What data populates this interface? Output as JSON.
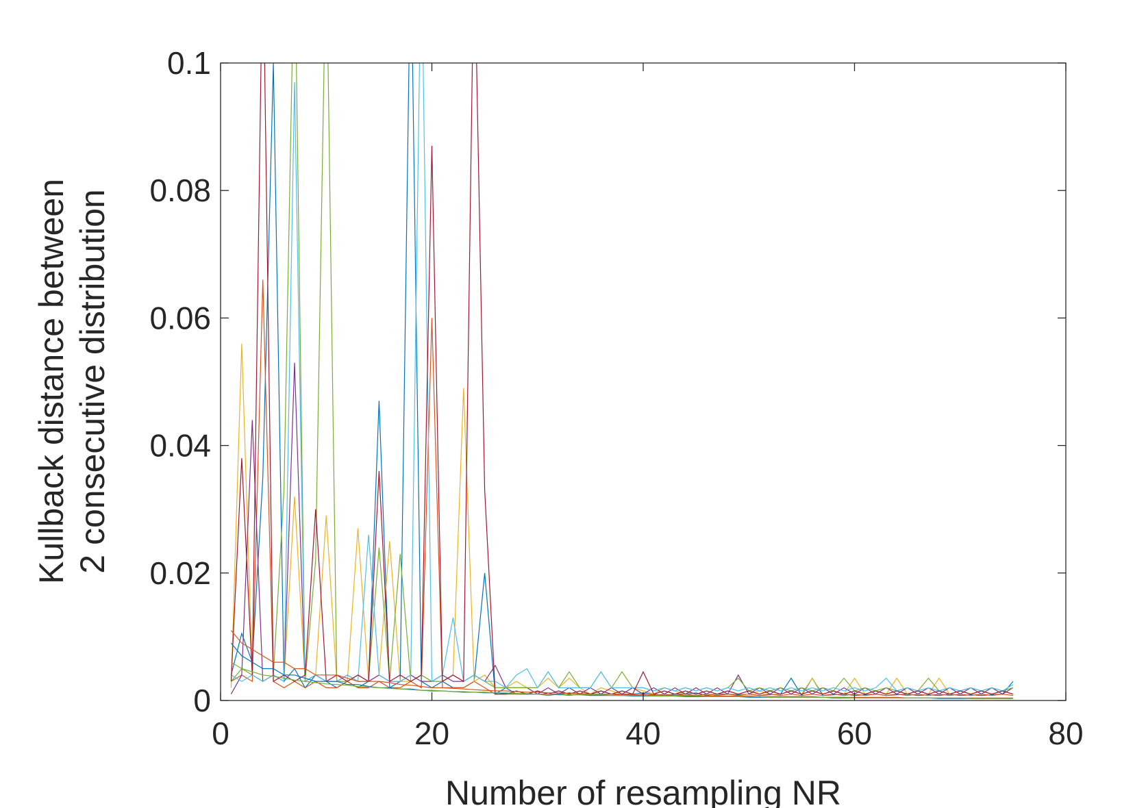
{
  "chart_data": {
    "type": "line",
    "title": "",
    "xlabel": "Number of resampling NR",
    "ylabel": [
      "Kullback distance between",
      "2 consecutive distribution"
    ],
    "xlim": [
      0,
      80
    ],
    "ylim": [
      0,
      0.1
    ],
    "xticks": [
      0,
      20,
      40,
      60,
      80
    ],
    "xtick_labels": [
      "0",
      "20",
      "40",
      "60",
      "80"
    ],
    "yticks": [
      0,
      0.02,
      0.04,
      0.06,
      0.08,
      0.1
    ],
    "ytick_labels": [
      "0",
      "0.02",
      "0.04",
      "0.06",
      "0.08",
      "0.1"
    ],
    "grid": false,
    "box": true,
    "legend": "none",
    "x": [
      1,
      2,
      3,
      4,
      5,
      6,
      7,
      8,
      9,
      10,
      11,
      12,
      13,
      14,
      15,
      16,
      17,
      18,
      19,
      20,
      21,
      22,
      23,
      24,
      25,
      26,
      27,
      28,
      29,
      30,
      31,
      32,
      33,
      34,
      35,
      36,
      37,
      38,
      39,
      40,
      41,
      42,
      43,
      44,
      45,
      46,
      47,
      48,
      49,
      50,
      51,
      52,
      53,
      54,
      55,
      56,
      57,
      58,
      59,
      60,
      61,
      62,
      63,
      64,
      65,
      66,
      67,
      68,
      69,
      70,
      71,
      72,
      73,
      74,
      75
    ],
    "series": [
      {
        "color": "#0072BD",
        "values": [
          0.004,
          0.0105,
          0.006,
          0.035,
          0.1,
          0.003,
          0.005,
          0.002,
          0.004,
          0.003,
          0.002,
          0.003,
          0.002,
          0.003,
          0.047,
          0.002,
          0.003,
          0.12,
          0.003,
          0.002,
          0.003,
          0.002,
          0.002,
          0.003,
          0.02,
          0.001,
          0.002,
          0.001,
          0.001,
          0.0015,
          0.001,
          0.001,
          0.0012,
          0.001,
          0.001,
          0.0015,
          0.001,
          0.001,
          0.001,
          0.0012,
          0.001,
          0.0008,
          0.001,
          0.001,
          0.0012,
          0.0008,
          0.001,
          0.001,
          0.0009,
          0.001,
          0.0008,
          0.0009,
          0.001,
          0.0035,
          0.0008,
          0.0035,
          0.0008,
          0.0009,
          0.001,
          0.0008,
          0.0009,
          0.001,
          0.0008,
          0.0009,
          0.001,
          0.0008,
          0.0009,
          0.0008,
          0.001,
          0.0008,
          0.0009,
          0.0008,
          0.0009,
          0.001,
          0.003
        ]
      },
      {
        "color": "#D95319",
        "values": [
          0.003,
          0.004,
          0.003,
          0.066,
          0.003,
          0.002,
          0.003,
          0.002,
          0.003,
          0.002,
          0.002,
          0.003,
          0.002,
          0.002,
          0.003,
          0.002,
          0.002,
          0.003,
          0.002,
          0.06,
          0.002,
          0.002,
          0.002,
          0.003,
          0.002,
          0.001,
          0.001,
          0.001,
          0.001,
          0.001,
          0.0008,
          0.001,
          0.0008,
          0.001,
          0.0008,
          0.001,
          0.0008,
          0.001,
          0.0008,
          0.001,
          0.0008,
          0.001,
          0.0008,
          0.001,
          0.0008,
          0.001,
          0.0008,
          0.001,
          0.0008,
          0.001,
          0.0008,
          0.001,
          0.0008,
          0.001,
          0.0008,
          0.001,
          0.0008,
          0.001,
          0.0008,
          0.001,
          0.0008,
          0.001,
          0.0008,
          0.001,
          0.0008,
          0.001,
          0.0008,
          0.001,
          0.0008,
          0.001,
          0.0008,
          0.001,
          0.0008,
          0.001,
          0.0008
        ]
      },
      {
        "color": "#EDB120",
        "values": [
          0.002,
          0.056,
          0.004,
          0.003,
          0.004,
          0.003,
          0.032,
          0.003,
          0.004,
          0.029,
          0.003,
          0.003,
          0.027,
          0.003,
          0.004,
          0.025,
          0.003,
          0.003,
          0.004,
          0.003,
          0.003,
          0.004,
          0.049,
          0.003,
          0.004,
          0.002,
          0.002,
          0.003,
          0.002,
          0.002,
          0.0035,
          0.002,
          0.0035,
          0.002,
          0.001,
          0.002,
          0.0015,
          0.001,
          0.002,
          0.0015,
          0.001,
          0.002,
          0.0015,
          0.001,
          0.002,
          0.001,
          0.001,
          0.0015,
          0.001,
          0.001,
          0.0015,
          0.001,
          0.001,
          0.0015,
          0.001,
          0.0035,
          0.001,
          0.0015,
          0.001,
          0.0035,
          0.001,
          0.0015,
          0.001,
          0.0035,
          0.001,
          0.0015,
          0.001,
          0.0035,
          0.001,
          0.0015,
          0.001,
          0.0015,
          0.001,
          0.0015,
          0.001
        ]
      },
      {
        "color": "#7E2F8E",
        "values": [
          0.001,
          0.004,
          0.044,
          0.003,
          0.004,
          0.003,
          0.053,
          0.003,
          0.004,
          0.003,
          0.003,
          0.004,
          0.003,
          0.003,
          0.004,
          0.003,
          0.003,
          0.004,
          0.003,
          0.003,
          0.004,
          0.003,
          0.003,
          0.004,
          0.003,
          0.0055,
          0.002,
          0.002,
          0.002,
          0.001,
          0.002,
          0.001,
          0.002,
          0.001,
          0.002,
          0.001,
          0.002,
          0.001,
          0.002,
          0.001,
          0.002,
          0.001,
          0.002,
          0.001,
          0.002,
          0.001,
          0.002,
          0.001,
          0.004,
          0.001,
          0.002,
          0.001,
          0.002,
          0.001,
          0.002,
          0.001,
          0.002,
          0.001,
          0.002,
          0.001,
          0.002,
          0.001,
          0.002,
          0.001,
          0.002,
          0.001,
          0.002,
          0.001,
          0.002,
          0.001,
          0.002,
          0.001,
          0.002,
          0.001,
          0.002
        ]
      },
      {
        "color": "#77AC30",
        "values": [
          0.003,
          0.005,
          0.004,
          0.003,
          0.004,
          0.033,
          0.12,
          0.003,
          0.022,
          0.12,
          0.003,
          0.003,
          0.004,
          0.003,
          0.024,
          0.003,
          0.023,
          0.003,
          0.004,
          0.003,
          0.003,
          0.004,
          0.003,
          0.004,
          0.003,
          0.002,
          0.002,
          0.002,
          0.002,
          0.002,
          0.0045,
          0.002,
          0.0045,
          0.002,
          0.002,
          0.0045,
          0.002,
          0.0045,
          0.002,
          0.002,
          0.0015,
          0.002,
          0.0015,
          0.002,
          0.0015,
          0.002,
          0.0015,
          0.002,
          0.0035,
          0.0015,
          0.002,
          0.0015,
          0.002,
          0.0015,
          0.002,
          0.0015,
          0.002,
          0.0015,
          0.0035,
          0.0015,
          0.002,
          0.0015,
          0.002,
          0.0015,
          0.002,
          0.0015,
          0.0035,
          0.0015,
          0.002,
          0.0015,
          0.002,
          0.0015,
          0.002,
          0.0015,
          0.002
        ]
      },
      {
        "color": "#4DBEEE",
        "values": [
          0.004,
          0.003,
          0.004,
          0.003,
          0.004,
          0.003,
          0.097,
          0.003,
          0.004,
          0.003,
          0.003,
          0.004,
          0.003,
          0.026,
          0.004,
          0.003,
          0.003,
          0.004,
          0.12,
          0.003,
          0.004,
          0.013,
          0.003,
          0.004,
          0.003,
          0.003,
          0.002,
          0.004,
          0.005,
          0.002,
          0.0045,
          0.002,
          0.002,
          0.002,
          0.002,
          0.0045,
          0.002,
          0.002,
          0.002,
          0.002,
          0.0015,
          0.002,
          0.0015,
          0.002,
          0.0015,
          0.002,
          0.0015,
          0.002,
          0.0015,
          0.002,
          0.0015,
          0.002,
          0.0015,
          0.002,
          0.0015,
          0.002,
          0.0015,
          0.002,
          0.0015,
          0.002,
          0.0015,
          0.002,
          0.0035,
          0.0015,
          0.002,
          0.0015,
          0.002,
          0.0015,
          0.002,
          0.0015,
          0.002,
          0.0015,
          0.002,
          0.0015,
          0.0025
        ]
      },
      {
        "color": "#A2142F",
        "values": [
          0.003,
          0.038,
          0.004,
          0.12,
          0.003,
          0.004,
          0.003,
          0.004,
          0.03,
          0.003,
          0.004,
          0.003,
          0.004,
          0.003,
          0.036,
          0.003,
          0.004,
          0.003,
          0.004,
          0.087,
          0.003,
          0.004,
          0.003,
          0.12,
          0.033,
          0.001,
          0.001,
          0.0015,
          0.001,
          0.0015,
          0.001,
          0.0015,
          0.001,
          0.0015,
          0.001,
          0.0015,
          0.001,
          0.0015,
          0.001,
          0.0045,
          0.001,
          0.0015,
          0.001,
          0.0015,
          0.001,
          0.0015,
          0.001,
          0.0015,
          0.001,
          0.0015,
          0.001,
          0.0015,
          0.001,
          0.0015,
          0.001,
          0.0015,
          0.001,
          0.0015,
          0.001,
          0.0015,
          0.001,
          0.0015,
          0.001,
          0.0015,
          0.001,
          0.0015,
          0.001,
          0.0015,
          0.001,
          0.0015,
          0.001,
          0.0015,
          0.001,
          0.0015,
          0.001
        ]
      },
      {
        "color": "#0072BD",
        "values": [
          0.009,
          0.007,
          0.006,
          0.005,
          0.005,
          0.004,
          0.004,
          0.0035,
          0.003,
          0.003,
          0.003,
          0.0025,
          0.0025,
          0.0022,
          0.002,
          0.002,
          0.0018,
          0.0018,
          0.0016,
          0.0015,
          0.0015,
          0.0014,
          0.0013,
          0.0013,
          0.0012,
          0.0012,
          0.0011,
          0.0011,
          0.001,
          0.001,
          0.001,
          0.0009,
          0.0009,
          0.0009,
          0.0008,
          0.0008,
          0.0008,
          0.0008,
          0.0007,
          0.0007,
          0.0007,
          0.0007,
          0.0007,
          0.0006,
          0.0006,
          0.0006,
          0.0006,
          0.0006,
          0.0006,
          0.0005,
          0.0005,
          0.0005,
          0.0005,
          0.0005,
          0.0005,
          0.0005,
          0.0005,
          0.0004,
          0.0004,
          0.0004,
          0.0004,
          0.0004,
          0.0004,
          0.0004,
          0.0004,
          0.0004,
          0.0004,
          0.0003,
          0.0003,
          0.0003,
          0.0003,
          0.0003,
          0.0003,
          0.0003,
          0.0003
        ]
      },
      {
        "color": "#D95319",
        "values": [
          0.011,
          0.009,
          0.008,
          0.007,
          0.006,
          0.006,
          0.005,
          0.005,
          0.004,
          0.004,
          0.004,
          0.0035,
          0.003,
          0.003,
          0.003,
          0.0028,
          0.0025,
          0.0024,
          0.0022,
          0.002,
          0.002,
          0.0019,
          0.0018,
          0.0017,
          0.0016,
          0.0015,
          0.0015,
          0.0014,
          0.0013,
          0.0013,
          0.0012,
          0.0012,
          0.0011,
          0.0011,
          0.001,
          0.001,
          0.001,
          0.0009,
          0.0009,
          0.0009,
          0.0009,
          0.0008,
          0.0008,
          0.0008,
          0.0008,
          0.0007,
          0.0007,
          0.0007,
          0.0007,
          0.0007,
          0.0006,
          0.0006,
          0.0006,
          0.0006,
          0.0006,
          0.0006,
          0.0005,
          0.0005,
          0.0005,
          0.0005,
          0.0005,
          0.0005,
          0.0005,
          0.0005,
          0.0004,
          0.0004,
          0.0004,
          0.0004,
          0.0004,
          0.0004,
          0.0004,
          0.0004,
          0.0004,
          0.0004,
          0.0004
        ]
      },
      {
        "color": "#77AC30",
        "values": [
          0.006,
          0.005,
          0.0045,
          0.004,
          0.0038,
          0.0035,
          0.0032,
          0.003,
          0.0028,
          0.0026,
          0.0025,
          0.0024,
          0.0022,
          0.0021,
          0.002,
          0.0019,
          0.0018,
          0.0017,
          0.0016,
          0.0016,
          0.0015,
          0.0014,
          0.0014,
          0.0013,
          0.0013,
          0.0012,
          0.0012,
          0.0011,
          0.0011,
          0.001,
          0.001,
          0.001,
          0.0009,
          0.0009,
          0.0009,
          0.0009,
          0.0008,
          0.0008,
          0.0008,
          0.0008,
          0.0007,
          0.0007,
          0.0007,
          0.0007,
          0.0007,
          0.0006,
          0.0006,
          0.0006,
          0.0006,
          0.0006,
          0.0006,
          0.0005,
          0.0005,
          0.0005,
          0.0005,
          0.0005,
          0.0005,
          0.0005,
          0.0005,
          0.0004,
          0.0004,
          0.0004,
          0.0004,
          0.0004,
          0.0004,
          0.0004,
          0.0004,
          0.0004,
          0.0004,
          0.0004,
          0.0003,
          0.0003,
          0.0003,
          0.0003,
          0.0003
        ]
      }
    ]
  }
}
